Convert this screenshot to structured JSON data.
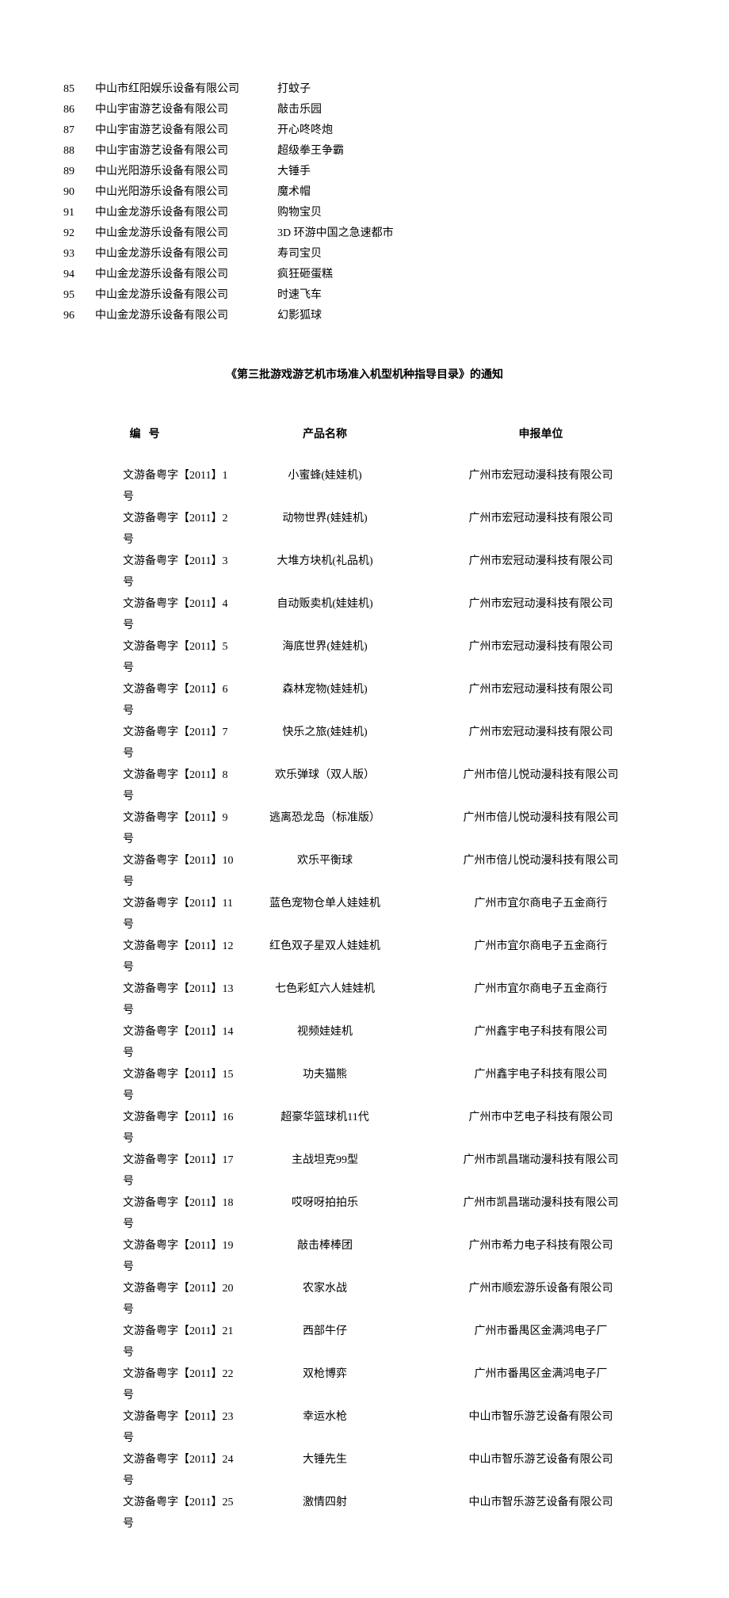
{
  "table1": {
    "rows": [
      {
        "num": "85",
        "company": "中山市红阳娱乐设备有限公司",
        "product": "打蚊子"
      },
      {
        "num": "86",
        "company": "中山宇宙游艺设备有限公司",
        "product": "敲击乐园"
      },
      {
        "num": "87",
        "company": "中山宇宙游艺设备有限公司",
        "product": "开心咚咚炮"
      },
      {
        "num": "88",
        "company": "中山宇宙游艺设备有限公司",
        "product": "超级拳王争霸"
      },
      {
        "num": "89",
        "company": "中山光阳游乐设备有限公司",
        "product": "大锤手"
      },
      {
        "num": "90",
        "company": "中山光阳游乐设备有限公司",
        "product": "魔术帽"
      },
      {
        "num": "91",
        "company": "中山金龙游乐设备有限公司",
        "product": "购物宝贝"
      },
      {
        "num": "92",
        "company": "中山金龙游乐设备有限公司",
        "product": "3D 环游中国之急速都市"
      },
      {
        "num": "93",
        "company": "中山金龙游乐设备有限公司",
        "product": "寿司宝贝"
      },
      {
        "num": "94",
        "company": "中山金龙游乐设备有限公司",
        "product": "疯狂砸蛋糕"
      },
      {
        "num": "95",
        "company": "中山金龙游乐设备有限公司",
        "product": "时速飞车"
      },
      {
        "num": "96",
        "company": "中山金龙游乐设备有限公司",
        "product": "幻影狐球"
      }
    ]
  },
  "notice_title": "《第三批游戏游艺机市场准入机型机种指导目录》的通知",
  "table2": {
    "header": {
      "code": "编号",
      "name": "产品名称",
      "unit": "申报单位"
    },
    "rows": [
      {
        "code": "文游备粤字【2011】1号",
        "name": "小蜜蜂(娃娃机)",
        "unit": "广州市宏冠动漫科技有限公司"
      },
      {
        "code": "文游备粤字【2011】2号",
        "name": "动物世界(娃娃机)",
        "unit": "广州市宏冠动漫科技有限公司"
      },
      {
        "code": "文游备粤字【2011】3号",
        "name": "大堆方块机(礼品机)",
        "unit": "广州市宏冠动漫科技有限公司"
      },
      {
        "code": "文游备粤字【2011】4号",
        "name": "自动贩卖机(娃娃机)",
        "unit": "广州市宏冠动漫科技有限公司"
      },
      {
        "code": "文游备粤字【2011】5号",
        "name": "海底世界(娃娃机)",
        "unit": "广州市宏冠动漫科技有限公司"
      },
      {
        "code": "文游备粤字【2011】6号",
        "name": "森林宠物(娃娃机)",
        "unit": "广州市宏冠动漫科技有限公司"
      },
      {
        "code": "文游备粤字【2011】7号",
        "name": "快乐之旅(娃娃机)",
        "unit": "广州市宏冠动漫科技有限公司"
      },
      {
        "code": "文游备粤字【2011】8号",
        "name": "欢乐弹球（双人版）",
        "unit": "广州市倍儿悦动漫科技有限公司"
      },
      {
        "code": "文游备粤字【2011】9号",
        "name": "逃离恐龙岛（标准版）",
        "unit": "广州市倍儿悦动漫科技有限公司"
      },
      {
        "code": "文游备粤字【2011】10号",
        "name": "欢乐平衡球",
        "unit": "广州市倍儿悦动漫科技有限公司"
      },
      {
        "code": "文游备粤字【2011】11号",
        "name": "蓝色宠物仓单人娃娃机",
        "unit": "广州市宜尔商电子五金商行"
      },
      {
        "code": "文游备粤字【2011】12号",
        "name": "红色双子星双人娃娃机",
        "unit": "广州市宜尔商电子五金商行"
      },
      {
        "code": "文游备粤字【2011】13号",
        "name": "七色彩虹六人娃娃机",
        "unit": "广州市宜尔商电子五金商行"
      },
      {
        "code": "文游备粤字【2011】14号",
        "name": "视频娃娃机",
        "unit": "广州鑫宇电子科技有限公司"
      },
      {
        "code": "文游备粤字【2011】15号",
        "name": "功夫猫熊",
        "unit": "广州鑫宇电子科技有限公司"
      },
      {
        "code": "文游备粤字【2011】16号",
        "name": "超豪华篮球机11代",
        "unit": "广州市中艺电子科技有限公司"
      },
      {
        "code": "文游备粤字【2011】17号",
        "name": "主战坦克99型",
        "unit": "广州市凯昌瑞动漫科技有限公司"
      },
      {
        "code": "文游备粤字【2011】18号",
        "name": "哎呀呀拍拍乐",
        "unit": "广州市凯昌瑞动漫科技有限公司"
      },
      {
        "code": "文游备粤字【2011】19号",
        "name": "敲击棒棒团",
        "unit": "广州市希力电子科技有限公司"
      },
      {
        "code": "文游备粤字【2011】20号",
        "name": "农家水战",
        "unit": "广州市顺宏游乐设备有限公司"
      },
      {
        "code": "文游备粤字【2011】21号",
        "name": "西部牛仔",
        "unit": "广州市番禺区金满鸿电子厂"
      },
      {
        "code": "文游备粤字【2011】22号",
        "name": "双枪博弈",
        "unit": "广州市番禺区金满鸿电子厂"
      },
      {
        "code": "文游备粤字【2011】23号",
        "name": "幸运水枪",
        "unit": "中山市智乐游艺设备有限公司"
      },
      {
        "code": "文游备粤字【2011】24号",
        "name": "大锤先生",
        "unit": "中山市智乐游艺设备有限公司"
      },
      {
        "code": "文游备粤字【2011】25号",
        "name": "激情四射",
        "unit": "中山市智乐游艺设备有限公司"
      }
    ]
  }
}
